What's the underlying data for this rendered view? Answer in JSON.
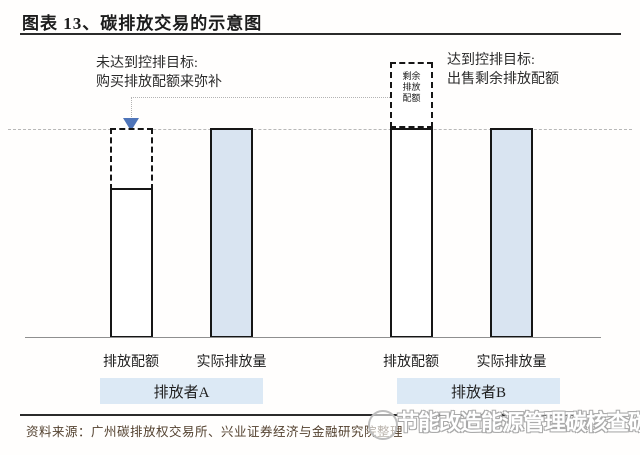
{
  "header": {
    "title": "图表 13、碳排放交易的示意图"
  },
  "diagram": {
    "annotation_a": {
      "line1": "未达到控排目标:",
      "line2": "购买排放配额来弥补"
    },
    "annotation_b": {
      "line1": "达到控排目标:",
      "line2": "出售剩余排放配额"
    },
    "surplus_box": {
      "line1": "剩余",
      "line2": "排放",
      "line3": "配额"
    },
    "group_a": {
      "quota_label": "排放配额",
      "actual_label": "实际排放量",
      "name": "排放者A"
    },
    "group_b": {
      "quota_label": "排放配额",
      "actual_label": "实际排放量",
      "name": "排放者B"
    }
  },
  "footer": {
    "source": "资料来源：广州碳排放权交易所、兴业证券经济与金融研究院整理"
  },
  "watermark": {
    "text": "节能改造能源管理碳核查碳交易"
  },
  "colors": {
    "bar_fill": "#d9e4f1",
    "band_fill": "#dce9f5",
    "arrow_blue": "#4e74b8",
    "rule_dark": "#2b2b2b",
    "dashed_gray": "#b8b8b8",
    "source_text": "#53412f"
  }
}
